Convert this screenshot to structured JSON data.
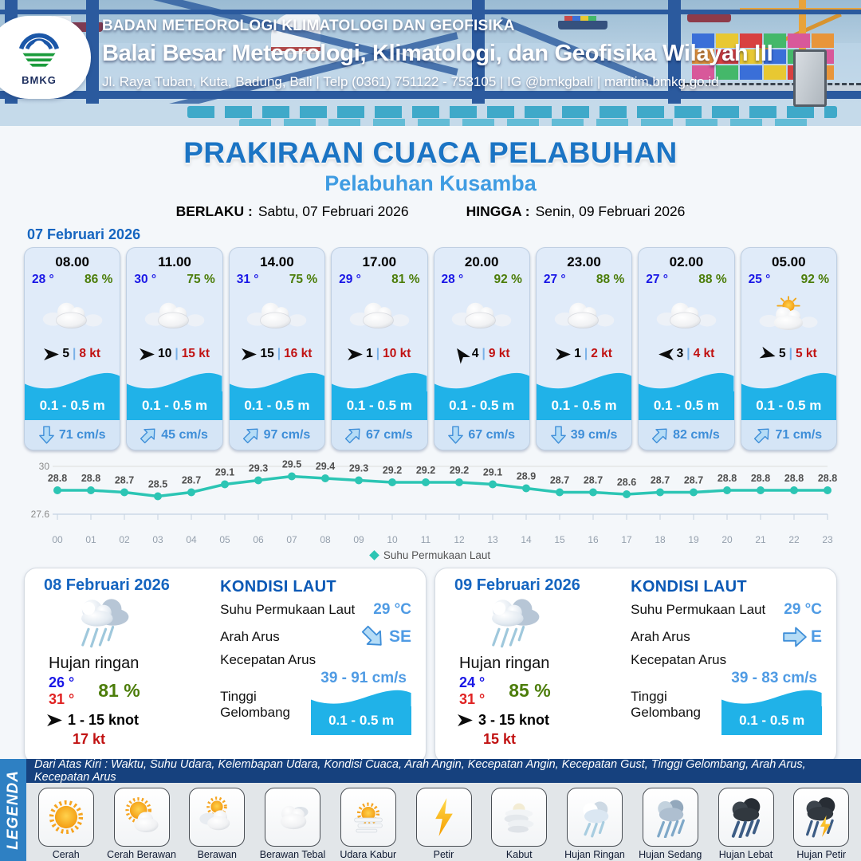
{
  "colors": {
    "title_blue": "#1b74c4",
    "subtitle_blue": "#3f9ce2",
    "date_blue": "#1565c0",
    "temp_blue": "#1a17e6",
    "humidity_green": "#4c7d0a",
    "gust_red": "#c11212",
    "wave_cyan": "#20b2e8",
    "current_blue": "#3e8ed8",
    "chart_teal": "#2cc5b4",
    "kondisi_blue": "#0a58b5",
    "value_blue": "#4f9be4",
    "legend_band": "#2e80c3",
    "legend_strip": "#16417e"
  },
  "header": {
    "logo_text": "BMKG",
    "agency_line": "BADAN METEOROLOGI KLIMATOLOGI DAN GEOFISIKA",
    "office_line": "Balai Besar Meteorologi, Klimatologi, dan Geofisika Wilayah III",
    "address_line": "Jl. Raya Tuban, Kuta, Badung, Bali | Telp (0361) 751122 - 753105 | IG @bmkgbali | maritim.bmkg.go.id"
  },
  "title": {
    "main": "PRAKIRAAN CUACA PELABUHAN",
    "subtitle": "Pelabuhan Kusamba",
    "berlaku_label": "BERLAKU :",
    "berlaku_value": "Sabtu, 07 Februari 2026",
    "hingga_label": "HINGGA :",
    "hingga_value": "Senin, 09 Februari 2026"
  },
  "day1": {
    "date": "07 Februari 2026",
    "cards": [
      {
        "time": "08.00",
        "temp": "28 °",
        "humidity": "86 %",
        "weather": "berawan",
        "wind_dir_deg": 0,
        "wind_speed": "5",
        "wind_gust": "8 kt",
        "wave": "0.1 - 0.5 m",
        "current_deg": 180,
        "current_speed": "71 cm/s"
      },
      {
        "time": "11.00",
        "temp": "30 °",
        "humidity": "75 %",
        "weather": "berawan",
        "wind_dir_deg": 0,
        "wind_speed": "10",
        "wind_gust": "15 kt",
        "wave": "0.1 - 0.5 m",
        "current_deg": 45,
        "current_speed": "45 cm/s"
      },
      {
        "time": "14.00",
        "temp": "31 °",
        "humidity": "75 %",
        "weather": "berawan",
        "wind_dir_deg": 0,
        "wind_speed": "15",
        "wind_gust": "16 kt",
        "wave": "0.1 - 0.5 m",
        "current_deg": 45,
        "current_speed": "97 cm/s"
      },
      {
        "time": "17.00",
        "temp": "29 °",
        "humidity": "81 %",
        "weather": "berawan",
        "wind_dir_deg": 0,
        "wind_speed": "1",
        "wind_gust": "10 kt",
        "wave": "0.1 - 0.5 m",
        "current_deg": 45,
        "current_speed": "67 cm/s"
      },
      {
        "time": "20.00",
        "temp": "28 °",
        "humidity": "92 %",
        "weather": "berawan",
        "wind_dir_deg": -125,
        "wind_speed": "4",
        "wind_gust": "9 kt",
        "wave": "0.1 - 0.5 m",
        "current_deg": 180,
        "current_speed": "67 cm/s"
      },
      {
        "time": "23.00",
        "temp": "27 °",
        "humidity": "88 %",
        "weather": "berawan",
        "wind_dir_deg": 0,
        "wind_speed": "1",
        "wind_gust": "2 kt",
        "wave": "0.1 - 0.5 m",
        "current_deg": 180,
        "current_speed": "39 cm/s"
      },
      {
        "time": "02.00",
        "temp": "27 °",
        "humidity": "88 %",
        "weather": "berawan",
        "wind_dir_deg": 180,
        "wind_speed": "3",
        "wind_gust": "4 kt",
        "wave": "0.1 - 0.5 m",
        "current_deg": 45,
        "current_speed": "82 cm/s"
      },
      {
        "time": "05.00",
        "temp": "25 °",
        "humidity": "92 %",
        "weather": "cerah-berawan",
        "wind_dir_deg": 15,
        "wind_speed": "5",
        "wind_gust": "5 kt",
        "wave": "0.1 - 0.5 m",
        "current_deg": 45,
        "current_speed": "71 cm/s"
      }
    ]
  },
  "chart_data": {
    "type": "line",
    "categories": [
      "00",
      "01",
      "02",
      "03",
      "04",
      "05",
      "06",
      "07",
      "08",
      "09",
      "10",
      "11",
      "12",
      "13",
      "14",
      "15",
      "16",
      "17",
      "18",
      "19",
      "20",
      "21",
      "22",
      "23"
    ],
    "series": [
      {
        "name": "Suhu Permukaan Laut",
        "values": [
          28.8,
          28.8,
          28.7,
          28.5,
          28.7,
          29.1,
          29.3,
          29.5,
          29.4,
          29.3,
          29.2,
          29.2,
          29.2,
          29.1,
          28.9,
          28.7,
          28.7,
          28.6,
          28.7,
          28.7,
          28.8,
          28.8,
          28.8,
          28.8
        ]
      }
    ],
    "ylim": [
      27.6,
      30
    ],
    "line_color": "#2cc5b4",
    "legend": "Suhu Permukaan Laut",
    "legend_position": "bottom",
    "grid": "top-and-bottom-only"
  },
  "day_cards": [
    {
      "date": "08 Februari 2026",
      "weather_label": "Hujan ringan",
      "temp_min": "26 °",
      "temp_max": "31 °",
      "humidity": "81 %",
      "wind_dir_deg": 0,
      "wind_range": "1 - 15 knot",
      "gust": "17 kt",
      "sea": {
        "title": "KONDISI LAUT",
        "sst_label": "Suhu Permukaan Laut",
        "sst_value": "29 °C",
        "arah_label": "Arah Arus",
        "arah_value": "SE",
        "arah_deg": 135,
        "kecepatan_label": "Kecepatan Arus",
        "kecepatan_value": "39 - 91 cm/s",
        "gelombang_label": "Tinggi Gelombang",
        "gelombang_value": "0.1 - 0.5 m"
      }
    },
    {
      "date": "09 Februari 2026",
      "weather_label": "Hujan ringan",
      "temp_min": "24 °",
      "temp_max": "31 °",
      "humidity": "85 %",
      "wind_dir_deg": 0,
      "wind_range": "3 - 15 knot",
      "gust": "15 kt",
      "sea": {
        "title": "KONDISI LAUT",
        "sst_label": "Suhu Permukaan Laut",
        "sst_value": "29 °C",
        "arah_label": "Arah Arus",
        "arah_value": "E",
        "arah_deg": 90,
        "kecepatan_label": "Kecepatan Arus",
        "kecepatan_value": "39 - 83 cm/s",
        "gelombang_label": "Tinggi Gelombang",
        "gelombang_value": "0.1 - 0.5 m"
      }
    }
  ],
  "legend": {
    "band_label": "LEGENDA",
    "header_note": "Dari Atas Kiri : Waktu, Suhu Udara, Kelembapan Udara, Kondisi Cuaca, Arah Angin, Kecepatan Angin, Kecepatan Gust, Tinggi Gelombang, Arah Arus, Kecepatan Arus",
    "items": [
      {
        "label": "Cerah",
        "icon": "sun"
      },
      {
        "label": "Cerah Berawan",
        "icon": "sun-cloud"
      },
      {
        "label": "Berawan",
        "icon": "clouds"
      },
      {
        "label": "Berawan Tebal",
        "icon": "cloud-thick"
      },
      {
        "label": "Udara Kabur",
        "icon": "haze"
      },
      {
        "label": "Petir",
        "icon": "bolt"
      },
      {
        "label": "Kabut",
        "icon": "fog"
      },
      {
        "label": "Hujan Ringan",
        "icon": "rain-light"
      },
      {
        "label": "Hujan Sedang",
        "icon": "rain-medium"
      },
      {
        "label": "Hujan Lebat",
        "icon": "rain-heavy"
      },
      {
        "label": "Hujan Petir",
        "icon": "rain-thunder"
      }
    ]
  }
}
